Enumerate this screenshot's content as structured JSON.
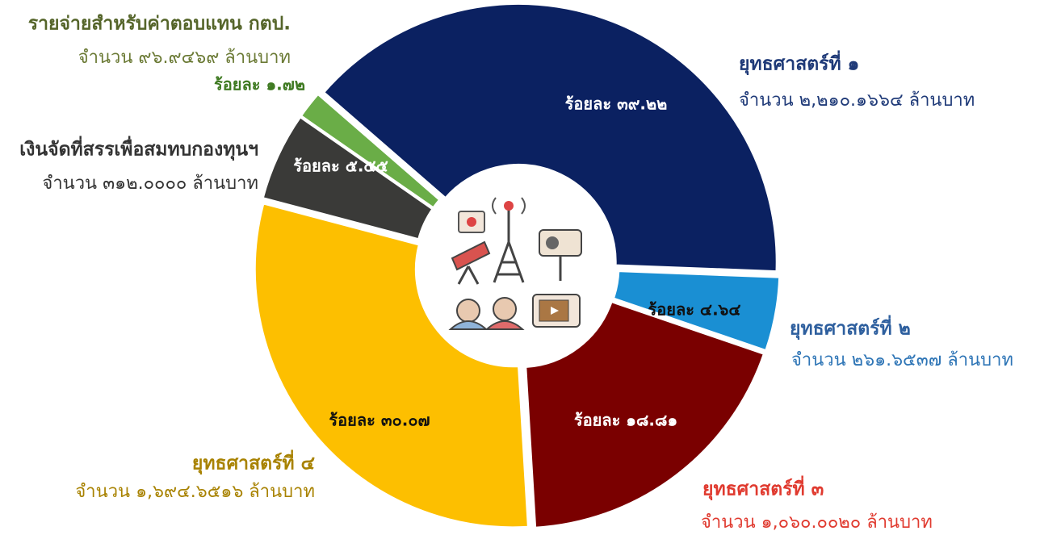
{
  "chart_data": {
    "type": "donut",
    "categories": [
      "ยุทธศาสตร์ที่ ๑",
      "ยุทธศาสตร์ที่ ๒",
      "ยุทธศาสตร์ที่ ๓",
      "ยุทธศาสตร์ที่ ๔",
      "เงินจัดที่สรรเพื่อสมทบกองทุนฯ",
      "รายจ่ายสำหรับค่าตอบแทน กตป."
    ],
    "values": [
      39.22,
      4.64,
      18.81,
      30.07,
      5.55,
      1.72
    ],
    "value_labels": [
      "ร้อยละ ๓๙.๒๒",
      "ร้อยละ ๔.๖๔",
      "ร้อยละ ๑๘.๘๑",
      "ร้อยละ ๓๐.๐๗",
      "ร้อยละ ๕.๕๕",
      "ร้อยละ ๑.๗๒"
    ],
    "amount_labels": [
      "จำนวน ๒,๒๑๐.๑๖๖๔ ล้านบาท",
      "จำนวน ๒๖๑.๖๕๓๗ ล้านบาท",
      "จำนวน ๑,๐๖๐.๐๐๒๐ ล้านบาท",
      "จำนวน ๑,๖๙๔.๖๕๑๖ ล้านบาท",
      "จำนวน ๓๑๒.๐๐๐๐ ล้านบาท",
      "จำนวน ๙๖.๙๔๖๙ ล้านบาท"
    ],
    "colors": [
      "#0b2161",
      "#1a8fd3",
      "#7a0000",
      "#fdbf00",
      "#3a3a38",
      "#6aad47"
    ]
  }
}
